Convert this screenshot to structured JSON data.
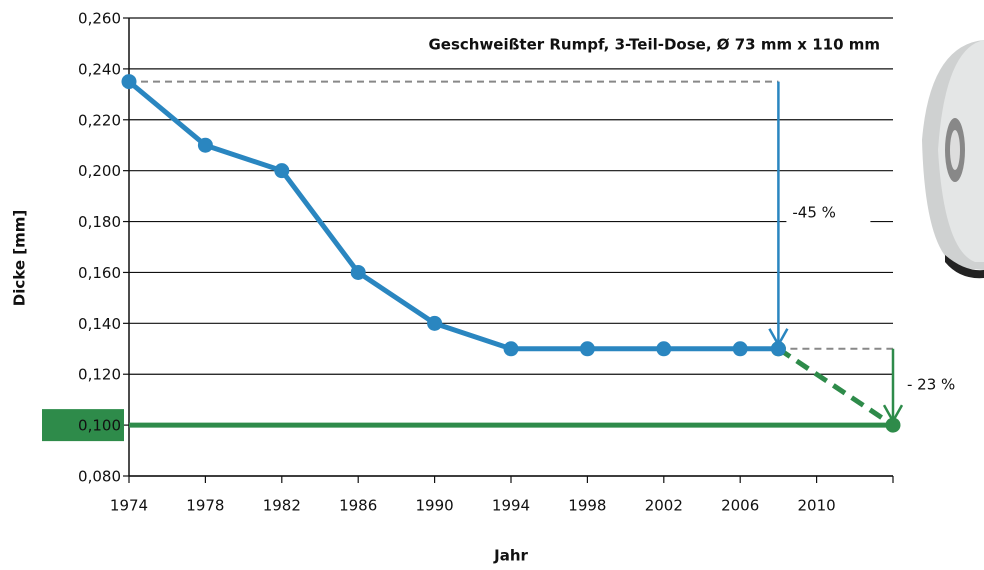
{
  "chart_data": {
    "type": "line",
    "title": "Geschweißter Rumpf, 3-Teil-Dose, Ø 73 mm x 110 mm",
    "x_label": "Jahr",
    "y_label": "Dicke [mm]",
    "xlim": [
      1974,
      2014
    ],
    "xticks": [
      1974,
      1978,
      1982,
      1986,
      1990,
      1994,
      1998,
      2002,
      2006,
      2010
    ],
    "ylim": [
      0.08,
      0.26
    ],
    "yticks": [
      {
        "value": 0.08,
        "label": "0,080"
      },
      {
        "value": 0.1,
        "label": "0,100"
      },
      {
        "value": 0.12,
        "label": "0,120"
      },
      {
        "value": 0.14,
        "label": "0,140"
      },
      {
        "value": 0.16,
        "label": "0,160"
      },
      {
        "value": 0.18,
        "label": "0,180"
      },
      {
        "value": 0.2,
        "label": "0,200"
      },
      {
        "value": 0.22,
        "label": "0,220"
      },
      {
        "value": 0.24,
        "label": "0,240"
      },
      {
        "value": 0.26,
        "label": "0,260"
      }
    ],
    "highlight_ytick": 0.1,
    "highlight_color": "#2e8b4a",
    "grid": true,
    "series": [
      {
        "color": "#2e8b4a",
        "style": "solid",
        "markers": false,
        "x": [
          1974,
          2014
        ],
        "values": [
          0.1,
          0.1
        ]
      },
      {
        "color": "#2e8b4a",
        "style": "dashed",
        "markers": true,
        "x": [
          2008,
          2014
        ],
        "values": [
          0.13,
          0.1
        ]
      },
      {
        "color": "#2a86c0",
        "style": "solid",
        "markers": true,
        "x": [
          1974,
          1978,
          1982,
          1986,
          1990,
          1994,
          1998,
          2002,
          2006,
          2008
        ],
        "values": [
          0.235,
          0.21,
          0.2,
          0.16,
          0.14,
          0.13,
          0.13,
          0.13,
          0.13,
          0.13
        ]
      }
    ],
    "reference_lines": [
      {
        "y": 0.235,
        "x": [
          1974,
          2008
        ],
        "color": "#888888"
      },
      {
        "y": 0.13,
        "x": [
          2008,
          2014
        ],
        "color": "#888888"
      }
    ],
    "annotations": [
      {
        "text": "-45 %",
        "x": 2008,
        "from": 0.235,
        "to": 0.13,
        "color": "#2a86c0"
      },
      {
        "text": "- 23 %",
        "x": 2014,
        "from": 0.13,
        "to": 0.1,
        "color": "#2e8b4a"
      }
    ]
  }
}
